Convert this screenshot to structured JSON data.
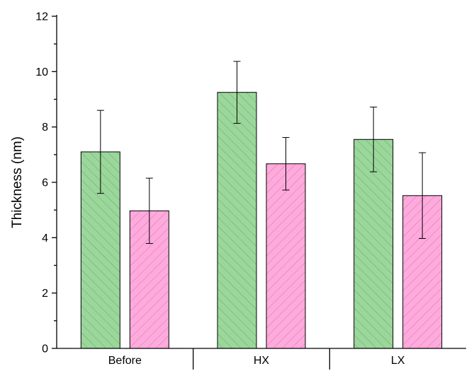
{
  "chart_data": {
    "type": "bar",
    "title": "",
    "xlabel": "",
    "ylabel": "Thickness (nm)",
    "categories": [
      "Before",
      "HX",
      "LX"
    ],
    "ylim": [
      0,
      12
    ],
    "yticks": [
      "0",
      "2",
      "4",
      "6",
      "8",
      "10",
      "12"
    ],
    "grid": false,
    "legend": "none",
    "series": [
      {
        "color": "#9bd79b",
        "hatch": "forward-diagonal",
        "values": [
          7.1,
          9.25,
          7.55
        ],
        "errors": [
          1.5,
          1.12,
          1.17
        ]
      },
      {
        "color": "#ffaadc",
        "hatch": "backward-diagonal",
        "values": [
          4.97,
          6.67,
          5.52
        ],
        "errors": [
          1.18,
          0.95,
          1.55
        ]
      }
    ]
  }
}
